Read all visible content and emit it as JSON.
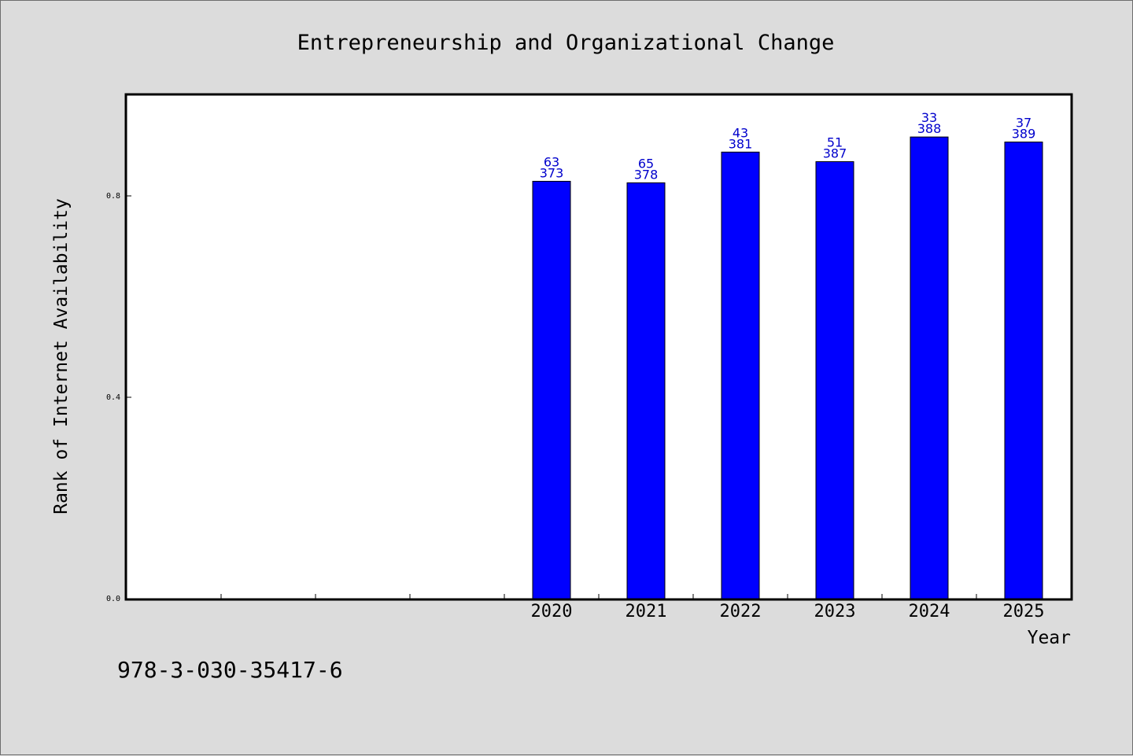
{
  "footer": {
    "isbn": "978-3-030-35417-6"
  },
  "chart_data": {
    "type": "bar",
    "title": "Entrepreneurship and Organizational Change",
    "xlabel": "Year",
    "ylabel": "Rank of Internet Availability",
    "ylim": [
      0,
      1.0
    ],
    "yticks": [
      "0.0",
      "0.4",
      "0.8"
    ],
    "categories": [
      "",
      "",
      "",
      "",
      "2020",
      "2021",
      "2022",
      "2023",
      "2024",
      "2025"
    ],
    "values": [
      null,
      null,
      null,
      null,
      0.829,
      0.826,
      0.887,
      0.868,
      0.917,
      0.907
    ],
    "data_labels": [
      null,
      null,
      null,
      null,
      [
        "63",
        "373"
      ],
      [
        "65",
        "378"
      ],
      [
        "43",
        "381"
      ],
      [
        "51",
        "387"
      ],
      [
        "33",
        "388"
      ],
      [
        "37",
        "389"
      ]
    ],
    "grid": false,
    "colors": {
      "bar": "#0000ff",
      "label": "#0000cc",
      "background": "#dcdcdc",
      "plot": "#ffffff"
    }
  }
}
